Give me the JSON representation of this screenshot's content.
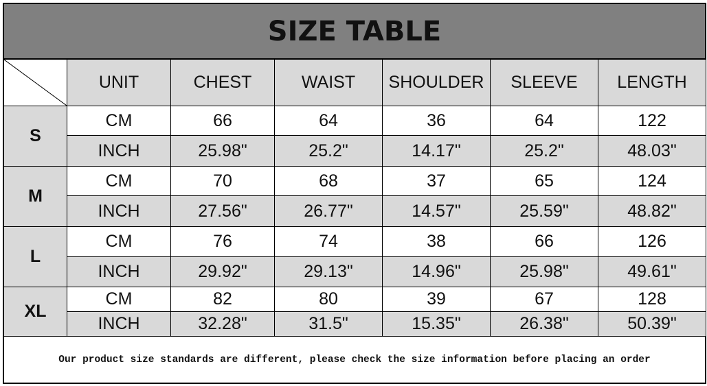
{
  "title": "SIZE TABLE",
  "headers": [
    "UNIT",
    "CHEST",
    "WAIST",
    "SHOULDER",
    "SLEEVE",
    "LENGTH"
  ],
  "sizes": [
    {
      "size": "S",
      "rows": [
        {
          "unit": "CM",
          "values": [
            "66",
            "64",
            "36",
            "64",
            "122"
          ]
        },
        {
          "unit": "INCH",
          "values": [
            "25.98\"",
            "25.2\"",
            "14.17\"",
            "25.2\"",
            "48.03\""
          ]
        }
      ]
    },
    {
      "size": "M",
      "rows": [
        {
          "unit": "CM",
          "values": [
            "70",
            "68",
            "37",
            "65",
            "124"
          ]
        },
        {
          "unit": "INCH",
          "values": [
            "27.56\"",
            "26.77\"",
            "14.57\"",
            "25.59\"",
            "48.82\""
          ]
        }
      ]
    },
    {
      "size": "L",
      "rows": [
        {
          "unit": "CM",
          "values": [
            "76",
            "74",
            "38",
            "66",
            "126"
          ]
        },
        {
          "unit": "INCH",
          "values": [
            "29.92\"",
            "29.13\"",
            "14.96\"",
            "25.98\"",
            "49.61\""
          ]
        }
      ]
    },
    {
      "size": "XL",
      "rows": [
        {
          "unit": "CM",
          "values": [
            "82",
            "80",
            "39",
            "67",
            "128"
          ]
        },
        {
          "unit": "INCH",
          "values": [
            "32.28\"",
            "31.5\"",
            "15.35\"",
            "26.38\"",
            "50.39\""
          ]
        }
      ]
    }
  ],
  "note": "Our product size standards are different, please check the size information before placing an order",
  "colors": {
    "title_bg": "#808080",
    "cell_gray": "#d9d9d9",
    "cell_white": "#ffffff"
  }
}
